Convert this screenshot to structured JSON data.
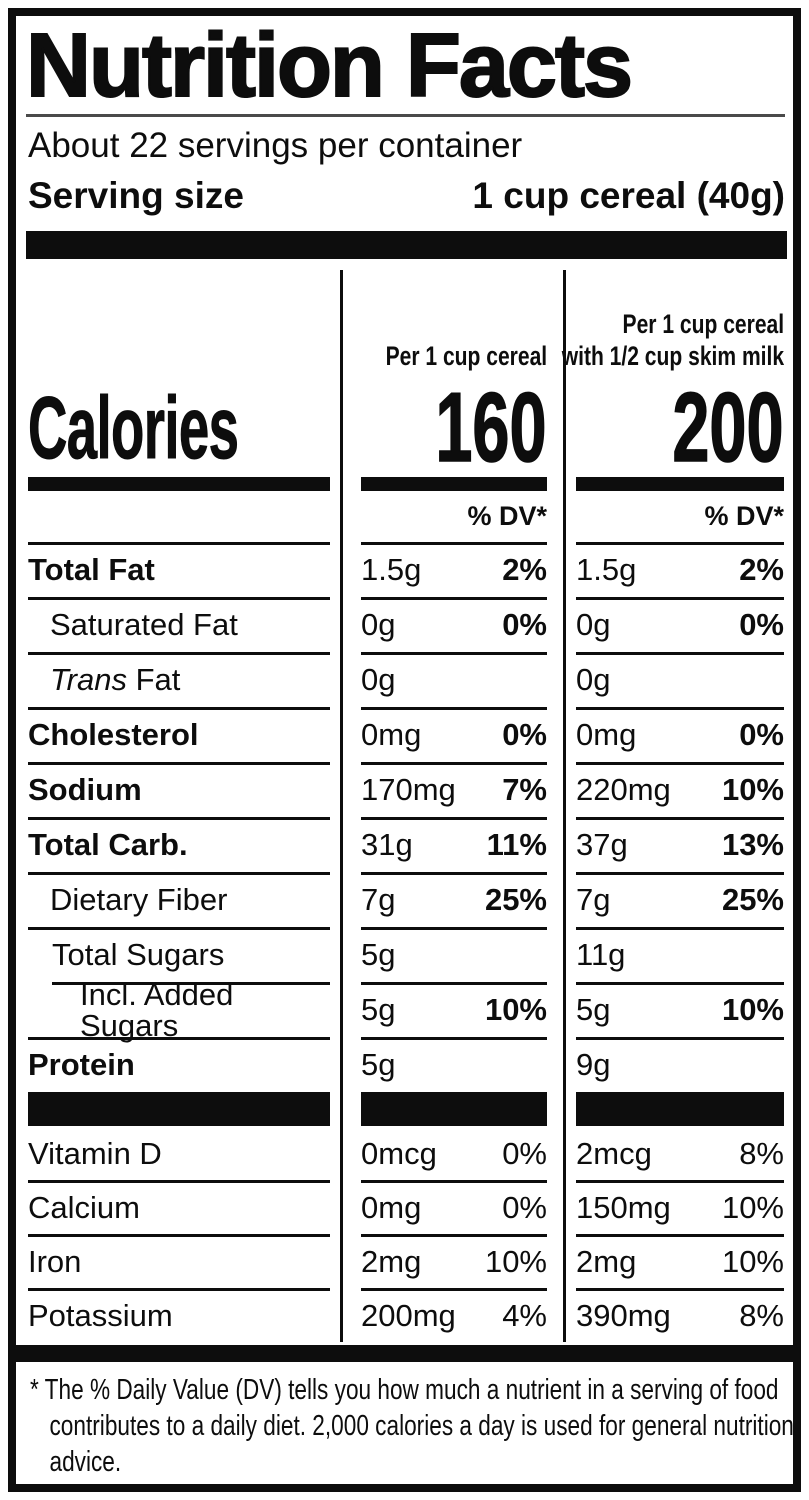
{
  "colors": {
    "ink": "#0d0d0d",
    "paper": "#ffffff"
  },
  "header": {
    "title": "Nutrition Facts",
    "servings_per_container": "About 22 servings per container",
    "serving_size_label": "Serving size",
    "serving_size_value": "1 cup cereal (40g)"
  },
  "calories_section": {
    "label": "Calories",
    "columns": [
      {
        "header_line1": "Per 1 cup cereal",
        "header_line2": "",
        "calories": "160",
        "dv_header": "% DV*"
      },
      {
        "header_line1": "Per 1 cup cereal",
        "header_line2": "with 1/2 cup skim milk",
        "calories": "200",
        "dv_header": "% DV*"
      }
    ]
  },
  "nutrients": [
    {
      "name": "Total Fat",
      "bold": true,
      "indent": 0,
      "col1": {
        "amount": "1.5g",
        "dv": "2%"
      },
      "col2": {
        "amount": "1.5g",
        "dv": "2%"
      }
    },
    {
      "name": "Saturated Fat",
      "bold": false,
      "indent": 1,
      "col1": {
        "amount": "0g",
        "dv": "0%"
      },
      "col2": {
        "amount": "0g",
        "dv": "0%"
      }
    },
    {
      "name": "Fat",
      "italic_prefix": "Trans",
      "bold": false,
      "indent": 1,
      "col1": {
        "amount": "0g",
        "dv": ""
      },
      "col2": {
        "amount": "0g",
        "dv": ""
      }
    },
    {
      "name": "Cholesterol",
      "bold": true,
      "indent": 0,
      "col1": {
        "amount": "0mg",
        "dv": "0%"
      },
      "col2": {
        "amount": "0mg",
        "dv": "0%"
      }
    },
    {
      "name": "Sodium",
      "bold": true,
      "indent": 0,
      "col1": {
        "amount": "170mg",
        "dv": "7%"
      },
      "col2": {
        "amount": "220mg",
        "dv": "10%"
      }
    },
    {
      "name": "Total Carb.",
      "bold": true,
      "indent": 0,
      "col1": {
        "amount": "31g",
        "dv": "11%"
      },
      "col2": {
        "amount": "37g",
        "dv": "13%"
      }
    },
    {
      "name": "Dietary Fiber",
      "bold": false,
      "indent": 1,
      "col1": {
        "amount": "7g",
        "dv": "25%"
      },
      "col2": {
        "amount": "7g",
        "dv": "25%"
      }
    },
    {
      "name": "Total Sugars",
      "bold": false,
      "indent": 1,
      "rule_indent": true,
      "col1": {
        "amount": "5g",
        "dv": ""
      },
      "col2": {
        "amount": "11g",
        "dv": ""
      }
    },
    {
      "name": "Incl. Added Sugars",
      "bold": false,
      "indent": 2,
      "col1": {
        "amount": "5g",
        "dv": "10%"
      },
      "col2": {
        "amount": "5g",
        "dv": "10%"
      }
    },
    {
      "name": "Protein",
      "bold": true,
      "indent": 0,
      "last": true,
      "col1": {
        "amount": "5g",
        "dv": ""
      },
      "col2": {
        "amount": "9g",
        "dv": ""
      }
    }
  ],
  "vitamins": [
    {
      "name": "Vitamin D",
      "col1": {
        "amount": "0mcg",
        "dv": "0%"
      },
      "col2": {
        "amount": "2mcg",
        "dv": "8%"
      }
    },
    {
      "name": "Calcium",
      "col1": {
        "amount": "0mg",
        "dv": "0%"
      },
      "col2": {
        "amount": "150mg",
        "dv": "10%"
      }
    },
    {
      "name": "Iron",
      "col1": {
        "amount": "2mg",
        "dv": "10%"
      },
      "col2": {
        "amount": "2mg",
        "dv": "10%"
      }
    },
    {
      "name": "Potassium",
      "last": true,
      "col1": {
        "amount": "200mg",
        "dv": "4%"
      },
      "col2": {
        "amount": "390mg",
        "dv": "8%"
      }
    }
  ],
  "footnote": "* The % Daily Value (DV) tells you how much a nutrient in a serving of food contributes to a daily diet. 2,000 calories a day is used for general nutrition advice."
}
